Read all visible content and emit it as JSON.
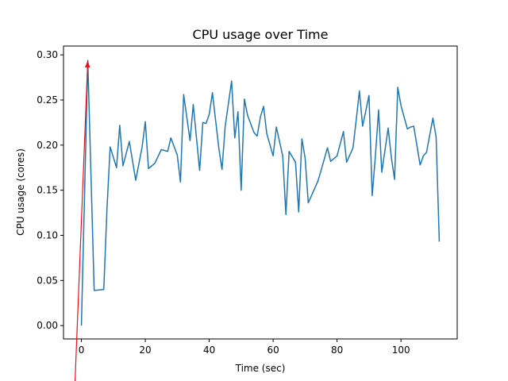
{
  "chart_data": {
    "type": "line",
    "title": "CPU usage over Time",
    "xlabel": "Time (sec)",
    "ylabel": "CPU usage (cores)",
    "xlim": [
      -5.6,
      117.6
    ],
    "ylim": [
      -0.0148,
      0.3098
    ],
    "xticks": [
      0,
      20,
      40,
      60,
      80,
      100
    ],
    "xtick_labels": [
      "0",
      "20",
      "40",
      "60",
      "80",
      "100"
    ],
    "yticks": [
      0.0,
      0.05,
      0.1,
      0.15,
      0.2,
      0.25,
      0.3
    ],
    "ytick_labels": [
      "0.00",
      "0.05",
      "0.10",
      "0.15",
      "0.20",
      "0.25",
      "0.30"
    ],
    "grid": false,
    "series": [
      {
        "name": "CPU usage",
        "color": "#1f77b4",
        "x": [
          0,
          2,
          4,
          7,
          8,
          9,
          11,
          12,
          13,
          15,
          17,
          19,
          20,
          21,
          23,
          25,
          27,
          28,
          30,
          31,
          32,
          34,
          35,
          37,
          38,
          39,
          40,
          41,
          43,
          44,
          45,
          47,
          48,
          49,
          50,
          51,
          52,
          54,
          55,
          56,
          57,
          58,
          60,
          61,
          63,
          64,
          65,
          67,
          68,
          69,
          70,
          71,
          72,
          74,
          75,
          77,
          78,
          80,
          82,
          83,
          85,
          86,
          87,
          88,
          90,
          91,
          92,
          93,
          94,
          96,
          97,
          98,
          99,
          100,
          102,
          103,
          104,
          106,
          107,
          108,
          110,
          111,
          112
        ],
        "values": [
          0.0,
          0.294,
          0.039,
          0.04,
          0.129,
          0.198,
          0.175,
          0.222,
          0.177,
          0.204,
          0.161,
          0.198,
          0.226,
          0.174,
          0.18,
          0.195,
          0.193,
          0.208,
          0.189,
          0.159,
          0.256,
          0.205,
          0.245,
          0.172,
          0.225,
          0.224,
          0.234,
          0.258,
          0.197,
          0.173,
          0.221,
          0.271,
          0.208,
          0.237,
          0.15,
          0.251,
          0.233,
          0.214,
          0.21,
          0.231,
          0.243,
          0.213,
          0.188,
          0.22,
          0.188,
          0.123,
          0.193,
          0.181,
          0.126,
          0.207,
          0.186,
          0.136,
          0.144,
          0.16,
          0.172,
          0.197,
          0.182,
          0.188,
          0.215,
          0.181,
          0.197,
          0.228,
          0.26,
          0.221,
          0.255,
          0.144,
          0.188,
          0.239,
          0.17,
          0.219,
          0.186,
          0.162,
          0.264,
          0.244,
          0.218,
          0.22,
          0.221,
          0.178,
          0.188,
          0.192,
          0.23,
          0.209,
          0.093
        ]
      }
    ],
    "annotations": [
      {
        "type": "arrow",
        "from": [
          -2.0,
          -0.063
        ],
        "to": [
          2.0,
          0.294
        ],
        "color": "#e8111c"
      }
    ]
  }
}
